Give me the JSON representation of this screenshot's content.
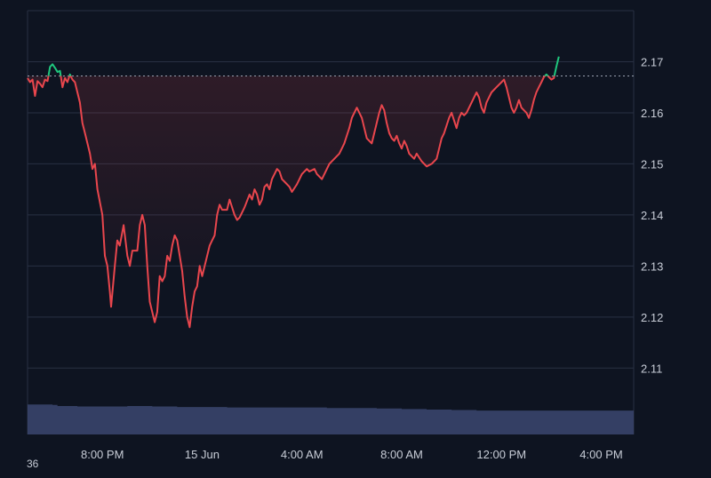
{
  "chart_data": {
    "type": "line",
    "title": "",
    "xlabel": "",
    "ylabel": "",
    "ylim": [
      2.097,
      2.18
    ],
    "y_ticks": [
      2.11,
      2.12,
      2.13,
      2.14,
      2.15,
      2.16,
      2.17
    ],
    "y_tick_labels": [
      "2.11",
      "2.12",
      "2.13",
      "2.14",
      "2.15",
      "2.16",
      "2.17"
    ],
    "x_tick_labels": [
      "8:00 PM",
      "15 Jun",
      "4:00 AM",
      "8:00 AM",
      "12:00 PM",
      "4:00 PM"
    ],
    "x_tick_times": [
      4,
      8,
      12,
      16,
      20,
      24
    ],
    "x_range": [
      1,
      25.3
    ],
    "baseline": 2.1672,
    "corner_label": "36",
    "colors": {
      "background": "#0e1421",
      "grid": "#283043",
      "above_baseline": "#1fc77e",
      "below_baseline": "#e9464d",
      "baseline": "#9aa2b0",
      "volume": "#3b4670"
    },
    "price": [
      [
        1.0,
        2.1668
      ],
      [
        1.1,
        2.166
      ],
      [
        1.2,
        2.1665
      ],
      [
        1.3,
        2.1633
      ],
      [
        1.4,
        2.1662
      ],
      [
        1.5,
        2.1657
      ],
      [
        1.6,
        2.165
      ],
      [
        1.7,
        2.1665
      ],
      [
        1.8,
        2.1662
      ],
      [
        1.9,
        2.169
      ],
      [
        2.0,
        2.1695
      ],
      [
        2.1,
        2.1688
      ],
      [
        2.2,
        2.168
      ],
      [
        2.3,
        2.1682
      ],
      [
        2.4,
        2.165
      ],
      [
        2.5,
        2.1668
      ],
      [
        2.6,
        2.166
      ],
      [
        2.7,
        2.1675
      ],
      [
        2.8,
        2.1665
      ],
      [
        2.9,
        2.166
      ],
      [
        3.0,
        2.164
      ],
      [
        3.1,
        2.162
      ],
      [
        3.2,
        2.158
      ],
      [
        3.3,
        2.156
      ],
      [
        3.5,
        2.152
      ],
      [
        3.6,
        2.149
      ],
      [
        3.7,
        2.15
      ],
      [
        3.8,
        2.145
      ],
      [
        4.0,
        2.14
      ],
      [
        4.1,
        2.132
      ],
      [
        4.2,
        2.13
      ],
      [
        4.3,
        2.125
      ],
      [
        4.35,
        2.122
      ],
      [
        4.5,
        2.13
      ],
      [
        4.6,
        2.135
      ],
      [
        4.7,
        2.134
      ],
      [
        4.85,
        2.138
      ],
      [
        5.0,
        2.132
      ],
      [
        5.1,
        2.13
      ],
      [
        5.2,
        2.133
      ],
      [
        5.4,
        2.133
      ],
      [
        5.5,
        2.138
      ],
      [
        5.6,
        2.14
      ],
      [
        5.7,
        2.138
      ],
      [
        5.8,
        2.13
      ],
      [
        5.9,
        2.123
      ],
      [
        6.0,
        2.121
      ],
      [
        6.1,
        2.119
      ],
      [
        6.2,
        2.121
      ],
      [
        6.3,
        2.128
      ],
      [
        6.4,
        2.127
      ],
      [
        6.5,
        2.128
      ],
      [
        6.6,
        2.132
      ],
      [
        6.7,
        2.131
      ],
      [
        6.8,
        2.134
      ],
      [
        6.9,
        2.136
      ],
      [
        7.0,
        2.135
      ],
      [
        7.1,
        2.132
      ],
      [
        7.2,
        2.129
      ],
      [
        7.3,
        2.124
      ],
      [
        7.4,
        2.12
      ],
      [
        7.5,
        2.118
      ],
      [
        7.6,
        2.122
      ],
      [
        7.7,
        2.125
      ],
      [
        7.8,
        2.126
      ],
      [
        7.9,
        2.13
      ],
      [
        8.0,
        2.128
      ],
      [
        8.1,
        2.13
      ],
      [
        8.2,
        2.132
      ],
      [
        8.3,
        2.134
      ],
      [
        8.4,
        2.135
      ],
      [
        8.5,
        2.136
      ],
      [
        8.6,
        2.14
      ],
      [
        8.7,
        2.142
      ],
      [
        8.8,
        2.141
      ],
      [
        9.0,
        2.141
      ],
      [
        9.1,
        2.143
      ],
      [
        9.3,
        2.14
      ],
      [
        9.4,
        2.139
      ],
      [
        9.5,
        2.1395
      ],
      [
        9.7,
        2.1415
      ],
      [
        9.9,
        2.144
      ],
      [
        10.0,
        2.143
      ],
      [
        10.1,
        2.145
      ],
      [
        10.2,
        2.144
      ],
      [
        10.3,
        2.142
      ],
      [
        10.4,
        2.143
      ],
      [
        10.5,
        2.1455
      ],
      [
        10.6,
        2.146
      ],
      [
        10.7,
        2.145
      ],
      [
        10.8,
        2.147
      ],
      [
        11.0,
        2.149
      ],
      [
        11.1,
        2.1485
      ],
      [
        11.2,
        2.147
      ],
      [
        11.3,
        2.1465
      ],
      [
        11.5,
        2.1455
      ],
      [
        11.6,
        2.1445
      ],
      [
        11.8,
        2.146
      ],
      [
        12.0,
        2.148
      ],
      [
        12.2,
        2.149
      ],
      [
        12.3,
        2.1485
      ],
      [
        12.5,
        2.149
      ],
      [
        12.6,
        2.148
      ],
      [
        12.8,
        2.147
      ],
      [
        13.0,
        2.149
      ],
      [
        13.1,
        2.15
      ],
      [
        13.3,
        2.151
      ],
      [
        13.5,
        2.152
      ],
      [
        13.6,
        2.153
      ],
      [
        13.7,
        2.154
      ],
      [
        13.8,
        2.1555
      ],
      [
        13.9,
        2.157
      ],
      [
        14.0,
        2.159
      ],
      [
        14.1,
        2.16
      ],
      [
        14.2,
        2.161
      ],
      [
        14.4,
        2.159
      ],
      [
        14.5,
        2.157
      ],
      [
        14.6,
        2.155
      ],
      [
        14.8,
        2.154
      ],
      [
        14.9,
        2.156
      ],
      [
        15.0,
        2.158
      ],
      [
        15.1,
        2.16
      ],
      [
        15.2,
        2.1615
      ],
      [
        15.3,
        2.1605
      ],
      [
        15.4,
        2.158
      ],
      [
        15.5,
        2.156
      ],
      [
        15.6,
        2.155
      ],
      [
        15.7,
        2.1545
      ],
      [
        15.8,
        2.1555
      ],
      [
        15.9,
        2.154
      ],
      [
        16.0,
        2.153
      ],
      [
        16.1,
        2.1545
      ],
      [
        16.2,
        2.1535
      ],
      [
        16.3,
        2.152
      ],
      [
        16.5,
        2.151
      ],
      [
        16.6,
        2.152
      ],
      [
        16.8,
        2.1505
      ],
      [
        17.0,
        2.1495
      ],
      [
        17.2,
        2.15
      ],
      [
        17.4,
        2.151
      ],
      [
        17.5,
        2.153
      ],
      [
        17.6,
        2.155
      ],
      [
        17.7,
        2.156
      ],
      [
        17.8,
        2.1575
      ],
      [
        17.9,
        2.159
      ],
      [
        18.0,
        2.16
      ],
      [
        18.1,
        2.1585
      ],
      [
        18.2,
        2.157
      ],
      [
        18.3,
        2.159
      ],
      [
        18.4,
        2.16
      ],
      [
        18.5,
        2.1595
      ],
      [
        18.6,
        2.16
      ],
      [
        18.8,
        2.162
      ],
      [
        19.0,
        2.164
      ],
      [
        19.1,
        2.163
      ],
      [
        19.2,
        2.161
      ],
      [
        19.3,
        2.16
      ],
      [
        19.4,
        2.162
      ],
      [
        19.5,
        2.163
      ],
      [
        19.6,
        2.164
      ],
      [
        19.8,
        2.165
      ],
      [
        20.0,
        2.166
      ],
      [
        20.1,
        2.1665
      ],
      [
        20.2,
        2.165
      ],
      [
        20.3,
        2.163
      ],
      [
        20.4,
        2.161
      ],
      [
        20.5,
        2.16
      ],
      [
        20.6,
        2.161
      ],
      [
        20.7,
        2.1625
      ],
      [
        20.8,
        2.161
      ],
      [
        21.0,
        2.16
      ],
      [
        21.1,
        2.159
      ],
      [
        21.2,
        2.1605
      ],
      [
        21.3,
        2.1625
      ],
      [
        21.4,
        2.164
      ],
      [
        21.5,
        2.165
      ],
      [
        21.6,
        2.166
      ],
      [
        21.7,
        2.167
      ],
      [
        21.8,
        2.1675
      ],
      [
        21.9,
        2.167
      ],
      [
        22.0,
        2.1665
      ],
      [
        22.1,
        2.1668
      ],
      [
        22.2,
        2.169
      ],
      [
        22.3,
        2.171
      ]
    ],
    "volume_levels": [
      [
        1.0,
        0.295
      ],
      [
        2.0,
        0.29
      ],
      [
        2.2,
        0.28
      ],
      [
        3.0,
        0.275
      ],
      [
        4.0,
        0.275
      ],
      [
        5.0,
        0.28
      ],
      [
        6.0,
        0.275
      ],
      [
        7.0,
        0.27
      ],
      [
        9.0,
        0.265
      ],
      [
        11.0,
        0.265
      ],
      [
        13.0,
        0.26
      ],
      [
        15.0,
        0.255
      ],
      [
        16.0,
        0.25
      ],
      [
        17.0,
        0.245
      ],
      [
        18.0,
        0.24
      ],
      [
        19.0,
        0.235
      ],
      [
        20.0,
        0.235
      ],
      [
        21.0,
        0.235
      ],
      [
        22.3,
        0.235
      ]
    ]
  }
}
